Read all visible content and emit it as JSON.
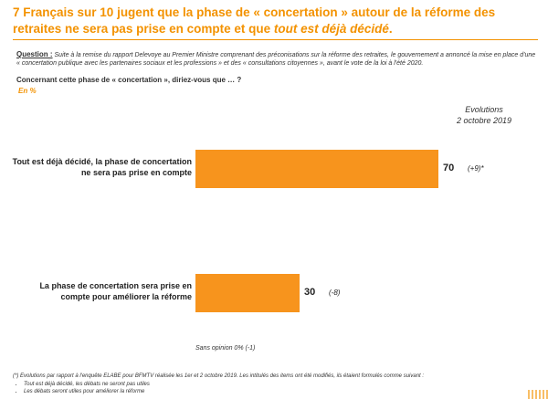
{
  "header": {
    "title_part1": "7 Français sur 10 jugent que la phase de « concertation » autour de la réforme des retraites ne sera pas prise en compte et que ",
    "title_emphasis": "tout est déjà décidé",
    "title_end": "."
  },
  "question": {
    "label": "Question :",
    "text": " Suite à la remise du rapport Delevoye au Premier Ministre comprenant des préconisations sur la réforme des retraites, le gouvernement a annoncé la mise en place d'une « concertation publique avec les partenaires sociaux et les professions » et des « consultations citoyennes », avant le vote de la loi à l'été 2020.",
    "sub": "Concernant cette phase de « concertation », diriez-vous que … ?",
    "unit": "En %"
  },
  "evolutions": {
    "title_line1": "Evolutions",
    "title_line2": "2 octobre 2019"
  },
  "chart_data": {
    "type": "bar",
    "orientation": "horizontal",
    "categories": [
      "Tout est déjà décidé, la phase de concertation ne sera pas prise en compte",
      "La phase de concertation sera prise en compte pour améliorer la réforme"
    ],
    "values": [
      70,
      30
    ],
    "value_labels": [
      "70",
      "30"
    ],
    "evolutions": [
      "(+9)*",
      "(-8)"
    ],
    "xlim": [
      0,
      100
    ],
    "bar_color": "#f7941d"
  },
  "no_opinion": "Sans opinion 0% (-1)",
  "footnote": {
    "text": "(*) Evolutions par rapport à l'enquête ELABE pour BFMTV réalisée les 1er et 2 octobre 2019. Les intitulés des items ont été modifiés, ils étaient formulés comme suivant :",
    "bullets": [
      "Tout est déjà décidé, les débats ne seront pas utiles",
      "Les débats seront utiles pour améliorer la réforme"
    ]
  },
  "colors": {
    "accent": "#f39200",
    "bar": "#f7941d"
  }
}
